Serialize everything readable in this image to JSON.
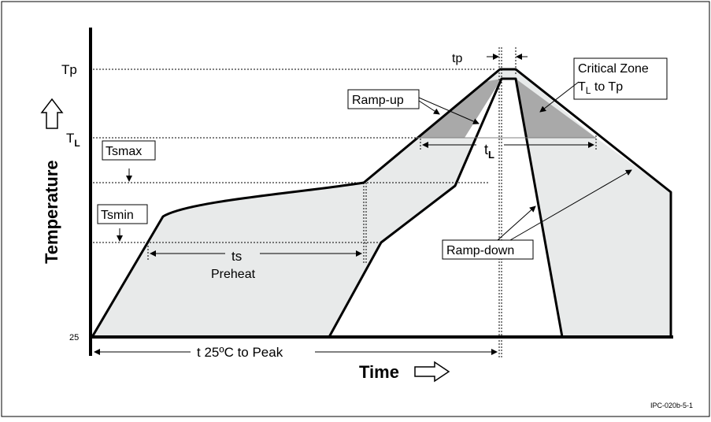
{
  "diagram": {
    "y_labels": {
      "tp": "Tp",
      "tl_main": "T",
      "tl_sub": "L",
      "base": "25"
    },
    "axis": {
      "x_title": "Time",
      "y_title": "Temperature"
    },
    "annotations": {
      "tp": "tp",
      "critical_zone_line1": "Critical Zone",
      "critical_zone_line2_main": "T",
      "critical_zone_line2_sub": "L",
      "critical_zone_line2_rest": " to Tp",
      "ramp_up": "Ramp-up",
      "tsmax": "Tsmax",
      "tsmin": "Tsmin",
      "tl_main": "t",
      "tl_sub": "L",
      "ts": "ts",
      "preheat": "Preheat",
      "ramp_down": "Ramp-down",
      "t_to_peak": "t  25ºC to Peak"
    },
    "figure_id": "IPC-020b-5-1",
    "colors": {
      "fill": "#e8eaea",
      "critical": "#a9a9a9",
      "line": "#000000"
    }
  }
}
